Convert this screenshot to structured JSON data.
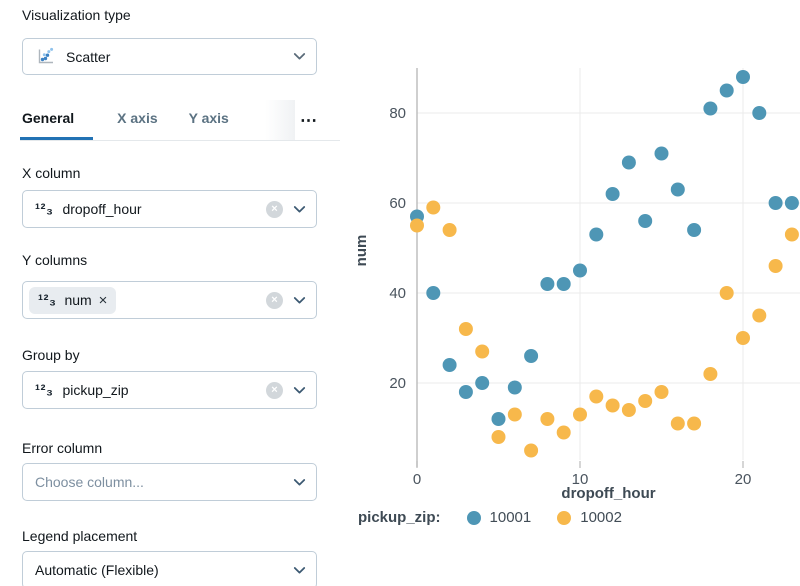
{
  "colors": {
    "accent": "#2272B4",
    "series_blue": "#4E96B5",
    "series_yellow": "#F7B84B",
    "gridline": "#EBEBEB",
    "zeroline": "#BFBFBF",
    "tick_text": "#4A545E",
    "axis_title": "#3E4A54"
  },
  "panel": {
    "viz_type_label": "Visualization type",
    "viz_type_value": "Scatter",
    "tabs": [
      {
        "label": "General"
      },
      {
        "label": "X axis"
      },
      {
        "label": "Y axis"
      }
    ],
    "tabs_overflow": "⋯",
    "fields": {
      "x_column": {
        "label": "X column",
        "value": "dropoff_hour",
        "type_icon": "¹²₃",
        "clear": "×"
      },
      "y_columns": {
        "label": "Y columns",
        "chip_icon": "¹²₃",
        "chip_text": "num",
        "chip_remove": "×",
        "clear": "×"
      },
      "group_by": {
        "label": "Group by",
        "value": "pickup_zip",
        "type_icon": "¹²₃",
        "clear": "×"
      },
      "error_column": {
        "label": "Error column",
        "placeholder": "Choose column..."
      },
      "legend_placement": {
        "label": "Legend placement",
        "value": "Automatic (Flexible)"
      }
    }
  },
  "chart_data": {
    "type": "scatter",
    "xlabel": "dropoff_hour",
    "ylabel": "num",
    "x_ticks": [
      0,
      10,
      20
    ],
    "y_ticks": [
      20,
      40,
      60,
      80
    ],
    "xlim": [
      -0.7,
      23.5
    ],
    "ylim": [
      1,
      90
    ],
    "grid": true,
    "legend_title": "pickup_zip:",
    "legend_position": "bottom",
    "x": [
      0,
      1,
      2,
      3,
      4,
      5,
      6,
      7,
      8,
      9,
      10,
      11,
      12,
      13,
      14,
      15,
      16,
      17,
      18,
      19,
      20,
      21,
      22,
      23
    ],
    "series": [
      {
        "name": "10001",
        "color": "#4E96B5",
        "values": [
          57,
          40,
          24,
          18,
          20,
          12,
          19,
          26,
          42,
          42,
          45,
          53,
          62,
          69,
          56,
          71,
          63,
          54,
          81,
          85,
          88,
          80,
          60,
          60
        ]
      },
      {
        "name": "10002",
        "color": "#F7B84B",
        "values": [
          55,
          59,
          54,
          32,
          27,
          8,
          13,
          5,
          12,
          9,
          13,
          17,
          15,
          14,
          16,
          18,
          11,
          11,
          22,
          40,
          30,
          35,
          46,
          53
        ]
      }
    ]
  }
}
